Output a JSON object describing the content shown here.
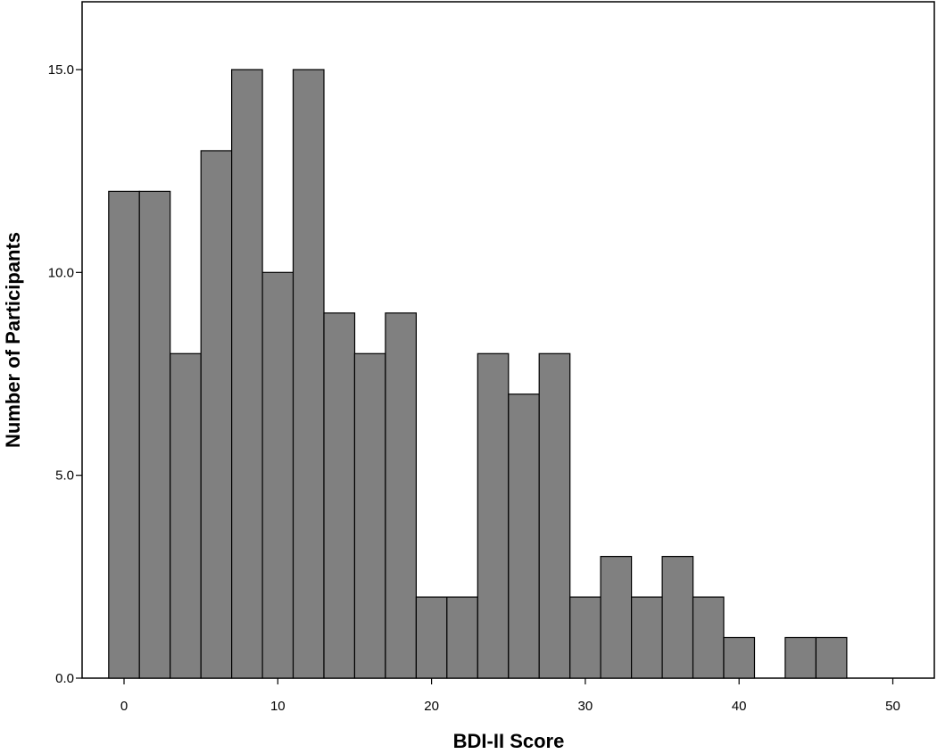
{
  "chart_data": {
    "type": "bar",
    "xlabel": "BDI-II Score",
    "ylabel": "Number of Participants",
    "bin_width": 2,
    "xlim": [
      -3,
      52
    ],
    "ylim": [
      0,
      16.1
    ],
    "x_ticks": [
      0,
      10,
      20,
      30,
      40,
      50
    ],
    "y_ticks": [
      0,
      5,
      10,
      15
    ],
    "x_tick_labels": [
      "0",
      "10",
      "20",
      "30",
      "40",
      "50"
    ],
    "y_tick_labels": [
      "0.0",
      "5.0",
      "10.0",
      "15.0"
    ],
    "bin_centers": [
      0,
      2,
      4,
      6,
      8,
      10,
      12,
      14,
      16,
      18,
      20,
      22,
      24,
      26,
      28,
      30,
      32,
      34,
      36,
      38,
      40,
      42,
      44,
      46
    ],
    "values": [
      12,
      12,
      8,
      13,
      15,
      10,
      15,
      9,
      8,
      9,
      2,
      2,
      8,
      7,
      8,
      2,
      3,
      2,
      3,
      2,
      1,
      0,
      1,
      1
    ],
    "bar_color": "#808080",
    "grid": false
  }
}
